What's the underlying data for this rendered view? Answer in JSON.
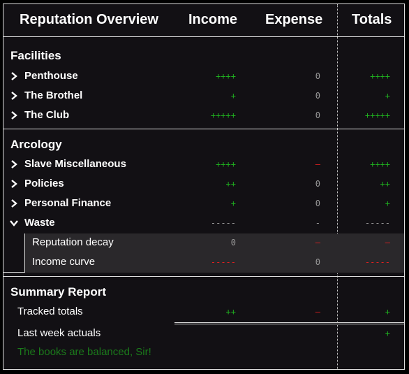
{
  "header": {
    "title": "Reputation Overview",
    "income": "Income",
    "expense": "Expense",
    "totals": "Totals"
  },
  "facilities": {
    "title": "Facilities",
    "rows": [
      {
        "label": "Penthouse",
        "income": "++++",
        "expense": "0",
        "total": "++++"
      },
      {
        "label": "The Brothel",
        "income": "+",
        "expense": "0",
        "total": "+"
      },
      {
        "label": "The Club",
        "income": "+++++",
        "expense": "0",
        "total": "+++++"
      }
    ]
  },
  "arcology": {
    "title": "Arcology",
    "rows": [
      {
        "label": "Slave Miscellaneous",
        "income": "++++",
        "expense": "–",
        "total": "++++"
      },
      {
        "label": "Policies",
        "income": "++",
        "expense": "0",
        "total": "++"
      },
      {
        "label": "Personal Finance",
        "income": "+",
        "expense": "0",
        "total": "+"
      },
      {
        "label": "Waste",
        "income": "-----",
        "expense": "-",
        "total": "-----"
      }
    ],
    "waste_rows": [
      {
        "label": "Reputation decay",
        "income": "0",
        "expense": "–",
        "total": "–"
      },
      {
        "label": "Income curve",
        "income": "-----",
        "expense": "0",
        "total": "-----"
      }
    ]
  },
  "summary": {
    "title": "Summary Report",
    "tracked": {
      "label": "Tracked totals",
      "income": "++",
      "expense": "–",
      "total": "+"
    },
    "actuals": {
      "label": "Last week actuals",
      "total": "+"
    },
    "message": "The books are balanced, Sir!"
  },
  "colors": {
    "positive": "#1fae1f",
    "negative": "#e02020",
    "neutral": "#9a9a9a",
    "message": "#1b7a1b"
  }
}
